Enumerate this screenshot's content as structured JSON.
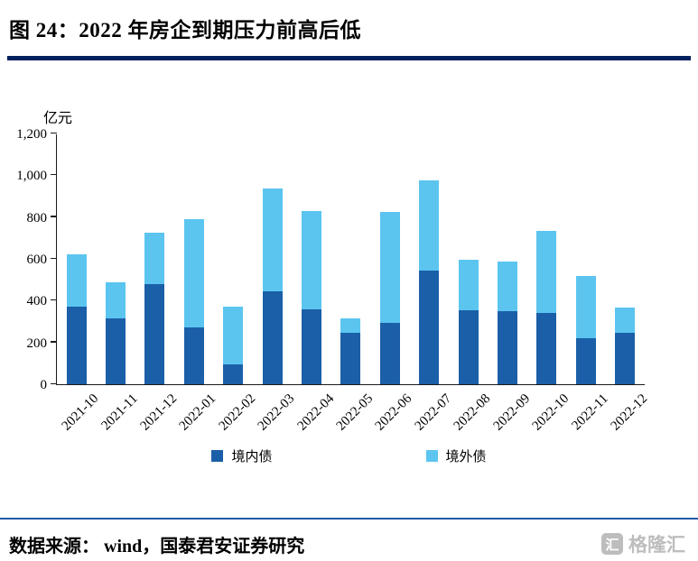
{
  "header": {
    "title": "图 24：2022 年房企到期压力前高后低"
  },
  "footer": {
    "source": "数据来源： wind，国泰君安证券研究",
    "watermark": "格隆汇",
    "watermark_icon": "汇"
  },
  "colors": {
    "divider_thick": "#002060",
    "divider_thin": "#1f5ca9",
    "axis": "#1a1a1a"
  },
  "chart_data": {
    "type": "bar",
    "stacked": true,
    "title": "图 24：2022 年房企到期压力前高后低",
    "ylabel": "亿元",
    "xlabel": "",
    "ylim": [
      0,
      1200
    ],
    "grid": false,
    "legend_position": "bottom",
    "categories": [
      "2021-10",
      "2021-11",
      "2021-12",
      "2022-01",
      "2022-02",
      "2022-03",
      "2022-04",
      "2022-05",
      "2022-06",
      "2022-07",
      "2022-08",
      "2022-09",
      "2022-10",
      "2022-11",
      "2022-12"
    ],
    "series": [
      {
        "name": "境内债",
        "key": "domestic",
        "color": "#1b5fa8",
        "values": [
          370,
          315,
          480,
          270,
          95,
          445,
          360,
          245,
          295,
          545,
          355,
          350,
          340,
          220,
          245
        ]
      },
      {
        "name": "境外债",
        "key": "overseas",
        "color": "#5bc5f0",
        "values": [
          250,
          175,
          245,
          520,
          275,
          490,
          470,
          70,
          530,
          430,
          240,
          235,
          395,
          300,
          120
        ]
      }
    ],
    "yticks": [
      {
        "label": "0",
        "value": 0
      },
      {
        "label": "200",
        "value": 200
      },
      {
        "label": "400",
        "value": 400
      },
      {
        "label": "600",
        "value": 600
      },
      {
        "label": "800",
        "value": 800
      },
      {
        "label": "1,000",
        "value": 1000
      },
      {
        "label": "1,200",
        "value": 1200
      }
    ]
  }
}
